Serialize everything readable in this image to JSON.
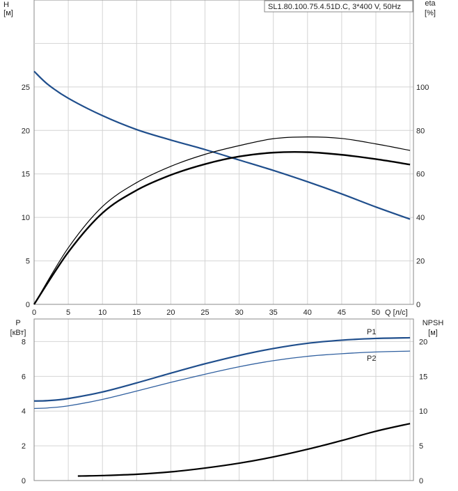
{
  "chart_data": [
    {
      "type": "line",
      "title": "SL1.80.100.75.4.51D.C, 3*400 V, 50Hz",
      "xlabel": "Q [л/с]",
      "ylabel": "H",
      "ylabel_unit": "[м]",
      "y2label": "eta",
      "y2label_unit": "[%]",
      "xlim": [
        0,
        55.5
      ],
      "ylim": [
        0,
        35
      ],
      "y2lim": [
        0,
        140
      ],
      "xticks": [
        "0",
        "5",
        "10",
        "15",
        "20",
        "25",
        "30",
        "35",
        "40",
        "45",
        "50"
      ],
      "yticks": [
        "0",
        "5",
        "10",
        "15",
        "20",
        "25"
      ],
      "y2ticks": [
        "0",
        "20",
        "40",
        "60",
        "80",
        "100"
      ],
      "grid": true,
      "series": [
        {
          "axis": "left",
          "color": "#1f4e8c",
          "x": [
            0,
            2,
            5,
            10,
            15,
            20,
            25,
            30,
            35,
            40,
            45,
            50,
            55
          ],
          "y": [
            26.8,
            25.3,
            23.7,
            21.7,
            20.1,
            18.9,
            17.8,
            16.6,
            15.4,
            14.1,
            12.7,
            11.2,
            9.8
          ]
        },
        {
          "axis": "right",
          "color": "#000000",
          "x": [
            0,
            5,
            10,
            15,
            20,
            25,
            30,
            35,
            40,
            45,
            50,
            55
          ],
          "y": [
            0,
            24,
            42,
            52.5,
            59.5,
            64.5,
            68,
            69.8,
            70,
            68.8,
            66.8,
            64.3
          ]
        },
        {
          "axis": "right",
          "color": "#000000",
          "x": [
            0,
            5,
            10,
            15,
            20,
            25,
            30,
            35,
            40,
            45,
            50,
            55
          ],
          "y": [
            0,
            26,
            45,
            56,
            63.5,
            69,
            73,
            76.2,
            77,
            76.3,
            73.8,
            70.8
          ]
        }
      ]
    },
    {
      "type": "line",
      "ylabel": "P",
      "ylabel_unit": "[кВт]",
      "y2label": "NPSH",
      "y2label_unit": "[м]",
      "xlim": [
        0,
        55.5
      ],
      "ylim": [
        0,
        9.3
      ],
      "y2lim": [
        0,
        23.25
      ],
      "yticks": [
        "0",
        "2",
        "4",
        "6",
        "8"
      ],
      "y2ticks": [
        "0",
        "5",
        "10",
        "15",
        "20"
      ],
      "grid": true,
      "series": [
        {
          "name": "P1",
          "axis": "left",
          "color": "#1f4e8c",
          "x": [
            0,
            2,
            5,
            10,
            15,
            20,
            25,
            30,
            35,
            40,
            45,
            50,
            55
          ],
          "y": [
            4.58,
            4.6,
            4.72,
            5.1,
            5.62,
            6.18,
            6.72,
            7.2,
            7.6,
            7.9,
            8.08,
            8.18,
            8.22
          ]
        },
        {
          "name": "P2",
          "axis": "left",
          "color": "#2f5f9f",
          "x": [
            0,
            2,
            5,
            10,
            15,
            20,
            25,
            30,
            35,
            40,
            45,
            50,
            55
          ],
          "y": [
            4.15,
            4.18,
            4.3,
            4.67,
            5.15,
            5.65,
            6.12,
            6.55,
            6.9,
            7.15,
            7.3,
            7.4,
            7.45
          ]
        },
        {
          "axis": "right",
          "color": "#000000",
          "x": [
            6.4,
            10,
            15,
            20,
            25,
            30,
            35,
            40,
            45,
            50,
            55
          ],
          "y": [
            0.65,
            0.72,
            0.9,
            1.25,
            1.8,
            2.5,
            3.4,
            4.5,
            5.75,
            7.1,
            8.2
          ]
        }
      ]
    }
  ]
}
